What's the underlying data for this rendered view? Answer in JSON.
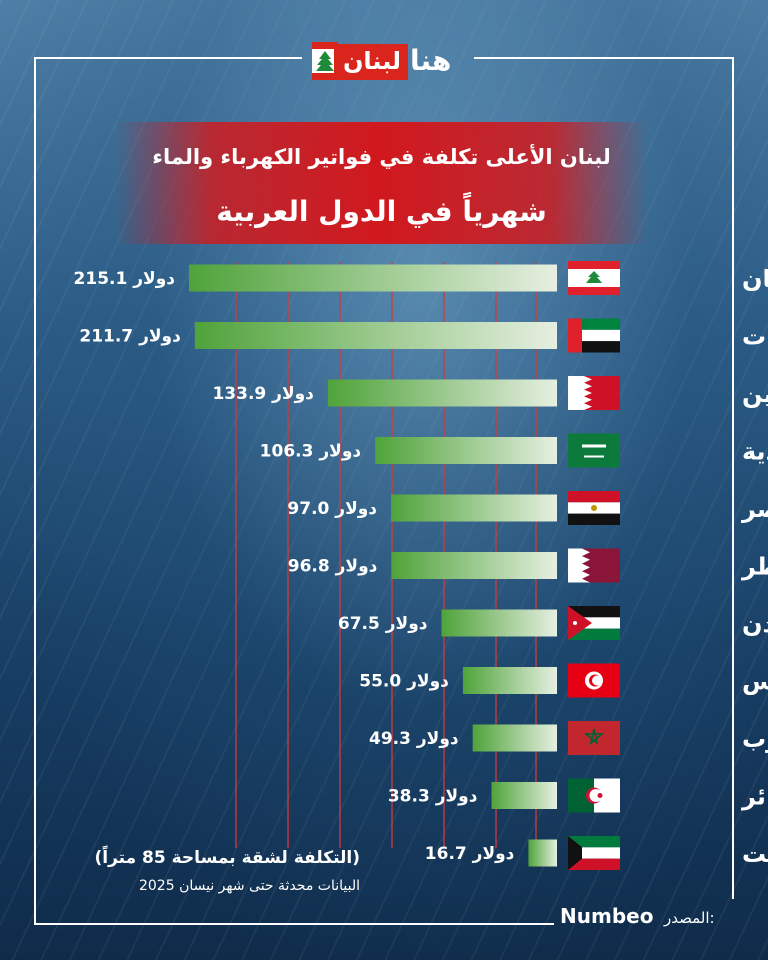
{
  "logo": {
    "part1": "لبنان",
    "part2": "هنا"
  },
  "title_line1": "لبنان الأعلى تكلفة في فواتير الكهرباء والماء",
  "title_line2": "شهرياً في الدول العربية",
  "unit": "دولار",
  "note_line1": "(التكلفة لشقة بمساحة 85 متراً)",
  "note_line2": "البيانات محدثة حتى شهر نيسان 2025",
  "source_label": "المصدر:",
  "source_value": "Numbeo",
  "colors": {
    "bar_dark": "#4fa33a",
    "bar_light": "#e6efe1",
    "title_band": "#d1181e",
    "grid": "#d23a3a"
  },
  "chart_data": {
    "type": "bar",
    "orientation": "horizontal",
    "categories": [
      "لبنان",
      "الإمارات",
      "البحرين",
      "السعودية",
      "مصر",
      "قطر",
      "الأردن",
      "تونس",
      "المغرب",
      "الجزائر",
      "الكويت"
    ],
    "value_labels": [
      "215.1",
      "211.7",
      "133.9",
      "106.3",
      "97.0",
      "96.8",
      "67.5",
      "55.0",
      "49.3",
      "38.3",
      "16.7"
    ],
    "values": [
      215.1,
      211.7,
      133.9,
      106.3,
      97.0,
      96.8,
      67.5,
      55.0,
      49.3,
      38.3,
      16.7
    ],
    "flags": [
      "lebanon-flag",
      "uae-flag",
      "bahrain-flag",
      "saudi-flag",
      "egypt-flag",
      "qatar-flag",
      "jordan-flag",
      "tunisia-flag",
      "morocco-flag",
      "algeria-flag",
      "kuwait-flag"
    ],
    "xlim": [
      0,
      215.1
    ],
    "grid": true
  }
}
